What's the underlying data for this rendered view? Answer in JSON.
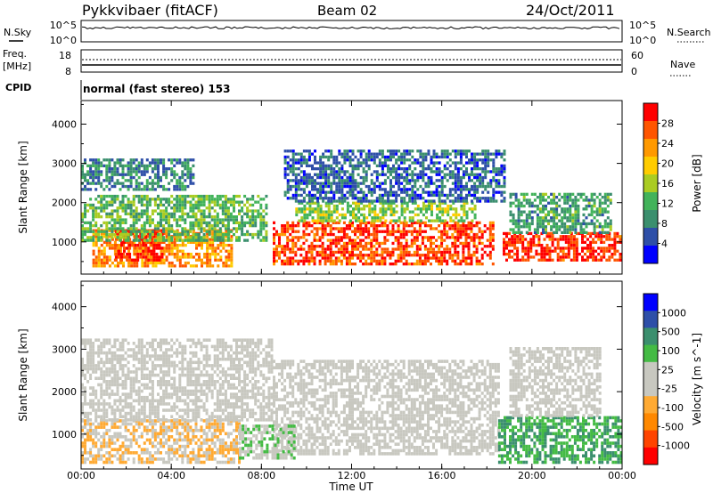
{
  "header": {
    "station": "Pykkvibaer (fitACF)",
    "beam": "Beam 02",
    "date": "24/Oct/2011"
  },
  "mini_panels": {
    "nsky": {
      "label": "N.Sky",
      "ticks": [
        "10^5",
        "10^0"
      ]
    },
    "nsearch": {
      "label": "N.Search",
      "ticks": [
        "10^5",
        "10^0"
      ]
    },
    "freq": {
      "label_line1": "Freq.",
      "label_line2": "[MHz]",
      "ticks": [
        "18",
        "8"
      ]
    },
    "nave": {
      "label": "Nave",
      "ticks": [
        "60",
        "0"
      ]
    },
    "cpid": {
      "label": "CPID",
      "value": "normal (fast stereo) 153"
    }
  },
  "colors": {
    "power_scale": [
      "#0000ff",
      "#2e4fa8",
      "#3b8f6e",
      "#42b35a",
      "#aacc22",
      "#ffcc00",
      "#ff9900",
      "#ff5500",
      "#ff0000"
    ],
    "velocity_scale": [
      "#ff0000",
      "#ff4400",
      "#ff8800",
      "#ffaa33",
      "#c8c8c0",
      "#c8c8c0",
      "#44bb44",
      "#3b8f6e",
      "#2e4fa8",
      "#0000ff"
    ],
    "no_data": "#ffffff"
  },
  "chart_data": [
    {
      "type": "heatmap",
      "title": "",
      "xlabel": "Time UT",
      "ylabel": "Slant Range [km]",
      "x_ticks": [
        "00:00",
        "04:00",
        "08:00",
        "12:00",
        "16:00",
        "20:00",
        "00:00"
      ],
      "x_hours": [
        0,
        4,
        8,
        12,
        16,
        20,
        24
      ],
      "y_ticks": [
        1000,
        2000,
        3000,
        4000
      ],
      "ylim": [
        180,
        4600
      ],
      "colorbar": {
        "label": "Power [dB]",
        "ticks": [
          "28",
          "24",
          "20",
          "16",
          "12",
          "8",
          "4"
        ],
        "range": [
          0,
          30
        ]
      },
      "regions": [
        {
          "t0": 0.5,
          "t1": 6.7,
          "r0": 350,
          "r1": 1300,
          "value": 22
        },
        {
          "t0": 1.5,
          "t1": 3.6,
          "r0": 500,
          "r1": 1300,
          "value": 28
        },
        {
          "t0": 0.0,
          "t1": 8.2,
          "r0": 1000,
          "r1": 2200,
          "value": 12
        },
        {
          "t0": 0.0,
          "t1": 5.0,
          "r0": 2300,
          "r1": 3100,
          "value": 8
        },
        {
          "t0": 8.5,
          "t1": 18.3,
          "r0": 400,
          "r1": 1500,
          "value": 26
        },
        {
          "t0": 9.5,
          "t1": 17.5,
          "r0": 1500,
          "r1": 2000,
          "value": 14
        },
        {
          "t0": 9.0,
          "t1": 18.8,
          "r0": 2000,
          "r1": 3300,
          "value": 6
        },
        {
          "t0": 18.7,
          "t1": 23.9,
          "r0": 500,
          "r1": 1200,
          "value": 27
        },
        {
          "t0": 19.0,
          "t1": 23.5,
          "r0": 1200,
          "r1": 2200,
          "value": 10
        }
      ]
    },
    {
      "type": "heatmap",
      "title": "",
      "xlabel": "Time UT",
      "ylabel": "Slant Range [km]",
      "x_ticks": [
        "00:00",
        "04:00",
        "08:00",
        "12:00",
        "16:00",
        "20:00",
        "00:00"
      ],
      "x_hours": [
        0,
        4,
        8,
        12,
        16,
        20,
        24
      ],
      "y_ticks": [
        1000,
        2000,
        3000,
        4000
      ],
      "ylim": [
        180,
        4600
      ],
      "colorbar": {
        "label": "Velocity [m s^-1]",
        "ticks": [
          "1000",
          "500",
          "100",
          "25",
          "-25",
          "-100",
          "-500",
          "-1000"
        ],
        "range": [
          -1000,
          1000
        ]
      },
      "regions": [
        {
          "t0": 0.0,
          "t1": 7.0,
          "r0": 300,
          "r1": 1300,
          "value": -200
        },
        {
          "t0": 0.0,
          "t1": 8.5,
          "r0": 1300,
          "r1": 3200,
          "value": 0
        },
        {
          "t0": 8.5,
          "t1": 18.5,
          "r0": 500,
          "r1": 2700,
          "value": 0
        },
        {
          "t0": 7.0,
          "t1": 9.5,
          "r0": 400,
          "r1": 1200,
          "value": 150
        },
        {
          "t0": 18.5,
          "t1": 24.0,
          "r0": 300,
          "r1": 1400,
          "value": 400
        },
        {
          "t0": 19.0,
          "t1": 23.0,
          "r0": 1400,
          "r1": 3000,
          "value": 0
        }
      ]
    }
  ]
}
